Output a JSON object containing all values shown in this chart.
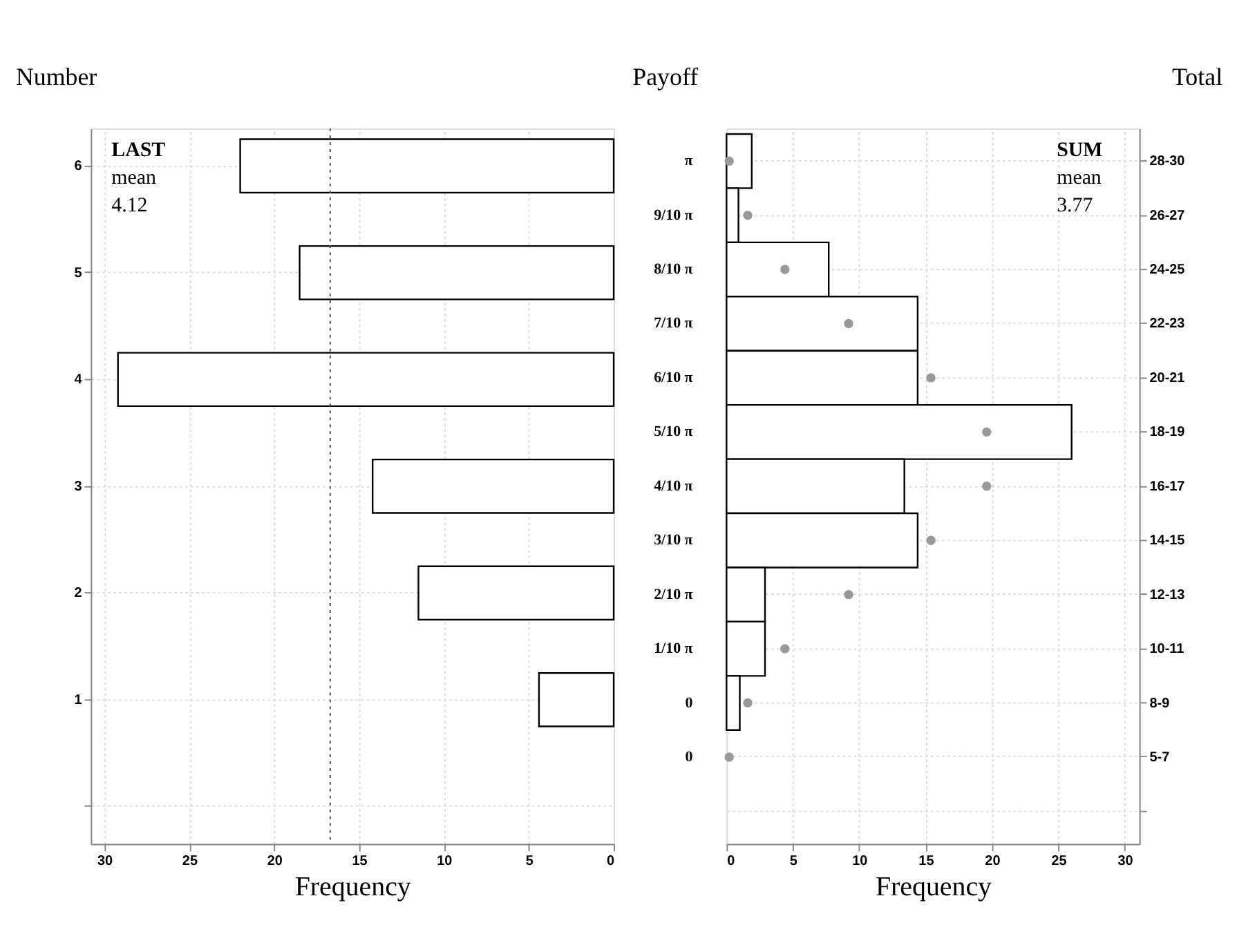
{
  "chart_data": [
    {
      "type": "bar",
      "orientation": "horizontal",
      "ylabel": "Number",
      "xlabel": "Frequency",
      "categories": [
        "6",
        "5",
        "4",
        "3",
        "2",
        "1",
        null
      ],
      "series": [
        {
          "color": "#ffffff",
          "values": [
            22,
            18.5,
            29.2,
            14.2,
            11.5,
            4.4,
            null
          ]
        }
      ],
      "xlim": [
        30.8,
        0
      ],
      "xticks": [
        30,
        25,
        20,
        15,
        10,
        5,
        0
      ],
      "ref_lines": [
        {
          "axis": "x",
          "value": 16.7,
          "color": "#555555",
          "line_style": "dotted"
        }
      ],
      "annotations": [
        "LAST",
        "mean",
        "4.12"
      ],
      "grid": true
    },
    {
      "type": "bar",
      "orientation": "horizontal",
      "ylabel": "Total",
      "y2label": "Payoff",
      "xlabel": "Frequency",
      "categories": [
        "28-30",
        "26-27",
        "24-25",
        "22-23",
        "20-21",
        "18-19",
        "16-17",
        "14-15",
        "12-13",
        "10-11",
        "8-9",
        "5-7",
        null
      ],
      "y2_categories": [
        "π",
        "9/10 π",
        "8/10 π",
        "7/10 π",
        "6/10 π",
        "5/10 π",
        "4/10 π",
        "3/10 π",
        "2/10 π",
        "1/10 π",
        "0",
        "0",
        null
      ],
      "series": [
        {
          "color": "#ffffff",
          "values": [
            1.9,
            0.9,
            7.7,
            14.4,
            14.4,
            26,
            13.4,
            14.4,
            2.9,
            2.9,
            1,
            null,
            null
          ]
        },
        {
          "type": "scatter",
          "color": "#999999",
          "values": [
            0.2,
            1.6,
            4.4,
            9.2,
            15.4,
            19.6,
            19.6,
            15.4,
            9.2,
            4.4,
            1.6,
            0.2,
            null
          ]
        }
      ],
      "xlim": [
        0,
        31.1
      ],
      "xticks": [
        0,
        5,
        10,
        15,
        20,
        25,
        30
      ],
      "annotations": [
        "SUM",
        "mean",
        "3.77"
      ],
      "grid": true,
      "marker": "circle"
    }
  ]
}
